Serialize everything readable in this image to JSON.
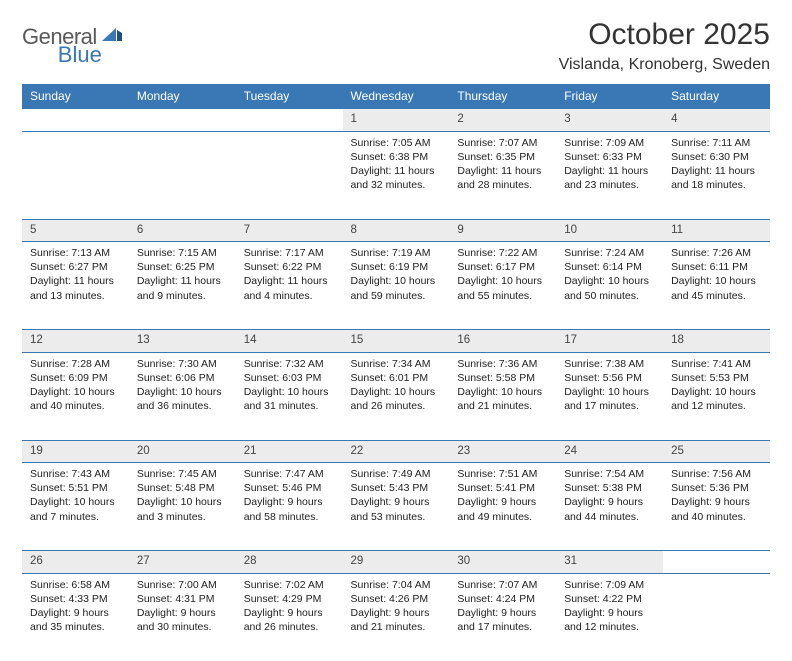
{
  "logo": {
    "word1": "General",
    "word2": "Blue"
  },
  "title": "October 2025",
  "location": "Vislanda, Kronoberg, Sweden",
  "colors": {
    "header_bg": "#3a78b5",
    "header_text": "#ffffff",
    "daynum_bg": "#ececec",
    "rule": "#3a78b5",
    "body_text": "#222222",
    "logo_gray": "#5a5a5a",
    "logo_blue": "#3a78b5"
  },
  "day_headers": [
    "Sunday",
    "Monday",
    "Tuesday",
    "Wednesday",
    "Thursday",
    "Friday",
    "Saturday"
  ],
  "weeks": [
    [
      null,
      null,
      null,
      {
        "d": "1",
        "sunrise": "7:05 AM",
        "sunset": "6:38 PM",
        "daylight": "11 hours and 32 minutes."
      },
      {
        "d": "2",
        "sunrise": "7:07 AM",
        "sunset": "6:35 PM",
        "daylight": "11 hours and 28 minutes."
      },
      {
        "d": "3",
        "sunrise": "7:09 AM",
        "sunset": "6:33 PM",
        "daylight": "11 hours and 23 minutes."
      },
      {
        "d": "4",
        "sunrise": "7:11 AM",
        "sunset": "6:30 PM",
        "daylight": "11 hours and 18 minutes."
      }
    ],
    [
      {
        "d": "5",
        "sunrise": "7:13 AM",
        "sunset": "6:27 PM",
        "daylight": "11 hours and 13 minutes."
      },
      {
        "d": "6",
        "sunrise": "7:15 AM",
        "sunset": "6:25 PM",
        "daylight": "11 hours and 9 minutes."
      },
      {
        "d": "7",
        "sunrise": "7:17 AM",
        "sunset": "6:22 PM",
        "daylight": "11 hours and 4 minutes."
      },
      {
        "d": "8",
        "sunrise": "7:19 AM",
        "sunset": "6:19 PM",
        "daylight": "10 hours and 59 minutes."
      },
      {
        "d": "9",
        "sunrise": "7:22 AM",
        "sunset": "6:17 PM",
        "daylight": "10 hours and 55 minutes."
      },
      {
        "d": "10",
        "sunrise": "7:24 AM",
        "sunset": "6:14 PM",
        "daylight": "10 hours and 50 minutes."
      },
      {
        "d": "11",
        "sunrise": "7:26 AM",
        "sunset": "6:11 PM",
        "daylight": "10 hours and 45 minutes."
      }
    ],
    [
      {
        "d": "12",
        "sunrise": "7:28 AM",
        "sunset": "6:09 PM",
        "daylight": "10 hours and 40 minutes."
      },
      {
        "d": "13",
        "sunrise": "7:30 AM",
        "sunset": "6:06 PM",
        "daylight": "10 hours and 36 minutes."
      },
      {
        "d": "14",
        "sunrise": "7:32 AM",
        "sunset": "6:03 PM",
        "daylight": "10 hours and 31 minutes."
      },
      {
        "d": "15",
        "sunrise": "7:34 AM",
        "sunset": "6:01 PM",
        "daylight": "10 hours and 26 minutes."
      },
      {
        "d": "16",
        "sunrise": "7:36 AM",
        "sunset": "5:58 PM",
        "daylight": "10 hours and 21 minutes."
      },
      {
        "d": "17",
        "sunrise": "7:38 AM",
        "sunset": "5:56 PM",
        "daylight": "10 hours and 17 minutes."
      },
      {
        "d": "18",
        "sunrise": "7:41 AM",
        "sunset": "5:53 PM",
        "daylight": "10 hours and 12 minutes."
      }
    ],
    [
      {
        "d": "19",
        "sunrise": "7:43 AM",
        "sunset": "5:51 PM",
        "daylight": "10 hours and 7 minutes."
      },
      {
        "d": "20",
        "sunrise": "7:45 AM",
        "sunset": "5:48 PM",
        "daylight": "10 hours and 3 minutes."
      },
      {
        "d": "21",
        "sunrise": "7:47 AM",
        "sunset": "5:46 PM",
        "daylight": "9 hours and 58 minutes."
      },
      {
        "d": "22",
        "sunrise": "7:49 AM",
        "sunset": "5:43 PM",
        "daylight": "9 hours and 53 minutes."
      },
      {
        "d": "23",
        "sunrise": "7:51 AM",
        "sunset": "5:41 PM",
        "daylight": "9 hours and 49 minutes."
      },
      {
        "d": "24",
        "sunrise": "7:54 AM",
        "sunset": "5:38 PM",
        "daylight": "9 hours and 44 minutes."
      },
      {
        "d": "25",
        "sunrise": "7:56 AM",
        "sunset": "5:36 PM",
        "daylight": "9 hours and 40 minutes."
      }
    ],
    [
      {
        "d": "26",
        "sunrise": "6:58 AM",
        "sunset": "4:33 PM",
        "daylight": "9 hours and 35 minutes."
      },
      {
        "d": "27",
        "sunrise": "7:00 AM",
        "sunset": "4:31 PM",
        "daylight": "9 hours and 30 minutes."
      },
      {
        "d": "28",
        "sunrise": "7:02 AM",
        "sunset": "4:29 PM",
        "daylight": "9 hours and 26 minutes."
      },
      {
        "d": "29",
        "sunrise": "7:04 AM",
        "sunset": "4:26 PM",
        "daylight": "9 hours and 21 minutes."
      },
      {
        "d": "30",
        "sunrise": "7:07 AM",
        "sunset": "4:24 PM",
        "daylight": "9 hours and 17 minutes."
      },
      {
        "d": "31",
        "sunrise": "7:09 AM",
        "sunset": "4:22 PM",
        "daylight": "9 hours and 12 minutes."
      },
      null
    ]
  ]
}
